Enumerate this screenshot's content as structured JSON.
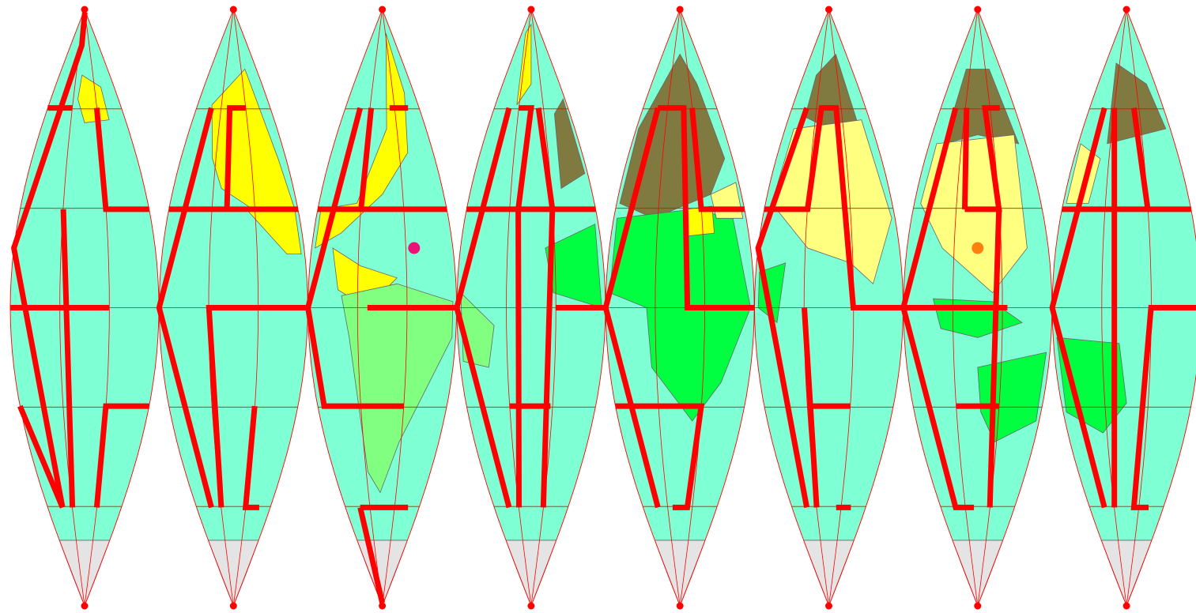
{
  "colors": {
    "background": "#ffffff",
    "ocean": "#7fffd4",
    "graticule": "#ff0000",
    "maze_wall": "#ff0000",
    "pole_marker": "#ff0000",
    "coast_stroke": "#666666",
    "north_america": "#ffff00",
    "south_america": "#80ff80",
    "africa": "#00ff40",
    "europe_russia": "#807a40",
    "asia": "#ffff80",
    "australia_oceania": "#00ff40",
    "antarctica": "#e4e4e4"
  },
  "gores": [
    {
      "name": "gore-1"
    },
    {
      "name": "gore-2"
    },
    {
      "name": "gore-3"
    },
    {
      "name": "gore-4"
    },
    {
      "name": "gore-5"
    },
    {
      "name": "gore-6"
    },
    {
      "name": "gore-7"
    },
    {
      "name": "gore-8"
    }
  ],
  "markers": [
    {
      "name": "start-marker",
      "color": "#ee1177",
      "gore": 3,
      "lat": 0.2,
      "lon": 0.45
    },
    {
      "name": "goal-marker",
      "color": "#ff7f0e",
      "gore": 7,
      "lat": 0.2,
      "lon": 0.0
    }
  ]
}
